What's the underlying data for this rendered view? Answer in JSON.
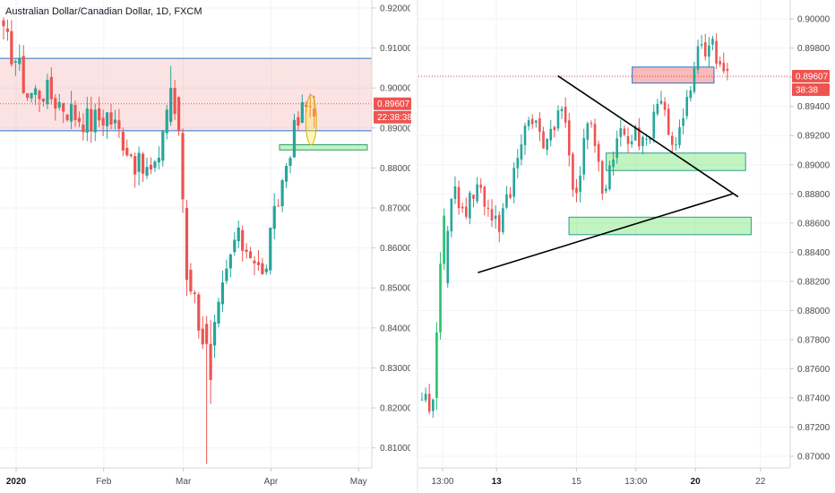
{
  "chart_data": [
    {
      "type": "candlestick",
      "title": "Australian Dollar/Canadian Dollar, 1D, FXCM",
      "ylim": [
        0.805,
        0.922
      ],
      "y_ticks": [
        "0.92000",
        "0.91000",
        "0.90000",
        "0.89000",
        "0.88000",
        "0.87000",
        "0.86000",
        "0.85000",
        "0.84000",
        "0.83000",
        "0.82000",
        "0.81000"
      ],
      "x_ticks": [
        {
          "label": "2020",
          "bold": true,
          "bar": 0
        },
        {
          "label": "Feb",
          "bold": false,
          "bar": 22
        },
        {
          "label": "Mar",
          "bold": false,
          "bar": 42
        },
        {
          "label": "Apr",
          "bold": false,
          "bar": 64
        },
        {
          "label": "May",
          "bold": false,
          "bar": 86
        }
      ],
      "last_price": "0.89607",
      "countdown": "22:38:38",
      "grid": true,
      "zones": [
        {
          "kind": "resistance",
          "y1": 0.8893,
          "y2": 0.9074,
          "bar_from": -4,
          "bar_to": 90
        },
        {
          "kind": "support",
          "y1": 0.8845,
          "y2": 0.8858,
          "bar_from": 68,
          "bar_to": 90
        }
      ],
      "highlight_ellipse": {
        "bar": 77,
        "y_center": 0.892,
        "y_half": 0.0062
      },
      "candles": []
    },
    {
      "type": "candlestick",
      "ylim": [
        0.8692,
        0.9013
      ],
      "y_ticks": [
        "0.90000",
        "0.89800",
        "0.89600",
        "0.89400",
        "0.89200",
        "0.89000",
        "0.88800",
        "0.88600",
        "0.88400",
        "0.88200",
        "0.88000",
        "0.87800",
        "0.87600",
        "0.87400",
        "0.87200",
        "0.87000"
      ],
      "x_ticks": [
        {
          "label": "13:00",
          "bold": false,
          "frac": 0.065
        },
        {
          "label": "13",
          "bold": true,
          "frac": 0.21
        },
        {
          "label": "15",
          "bold": false,
          "frac": 0.425
        },
        {
          "label": "13:00",
          "bold": false,
          "frac": 0.585
        },
        {
          "label": "20",
          "bold": true,
          "frac": 0.745
        },
        {
          "label": "22",
          "bold": false,
          "frac": 0.92
        }
      ],
      "last_price": "0.89607",
      "countdown": "38:38",
      "grid": true,
      "zones": [
        {
          "kind": "resistance",
          "y1": 0.8956,
          "y2": 0.8967,
          "frac_from": 0.575,
          "frac_to": 0.795
        },
        {
          "kind": "support",
          "y1": 0.8896,
          "y2": 0.8908,
          "frac_from": 0.505,
          "frac_to": 0.88
        },
        {
          "kind": "support",
          "y1": 0.8852,
          "y2": 0.8864,
          "frac_from": 0.405,
          "frac_to": 0.895
        }
      ],
      "trendlines": [
        {
          "frac_x1": 0.375,
          "y1": 0.8961,
          "frac_x2": 0.86,
          "y2": 0.8878
        },
        {
          "frac_x1": 0.16,
          "y1": 0.8826,
          "frac_x2": 0.845,
          "y2": 0.888
        }
      ],
      "candles": []
    }
  ],
  "colors": {
    "up": "#26a69a",
    "down": "#ef5350",
    "up_bright": "#26c26b"
  }
}
